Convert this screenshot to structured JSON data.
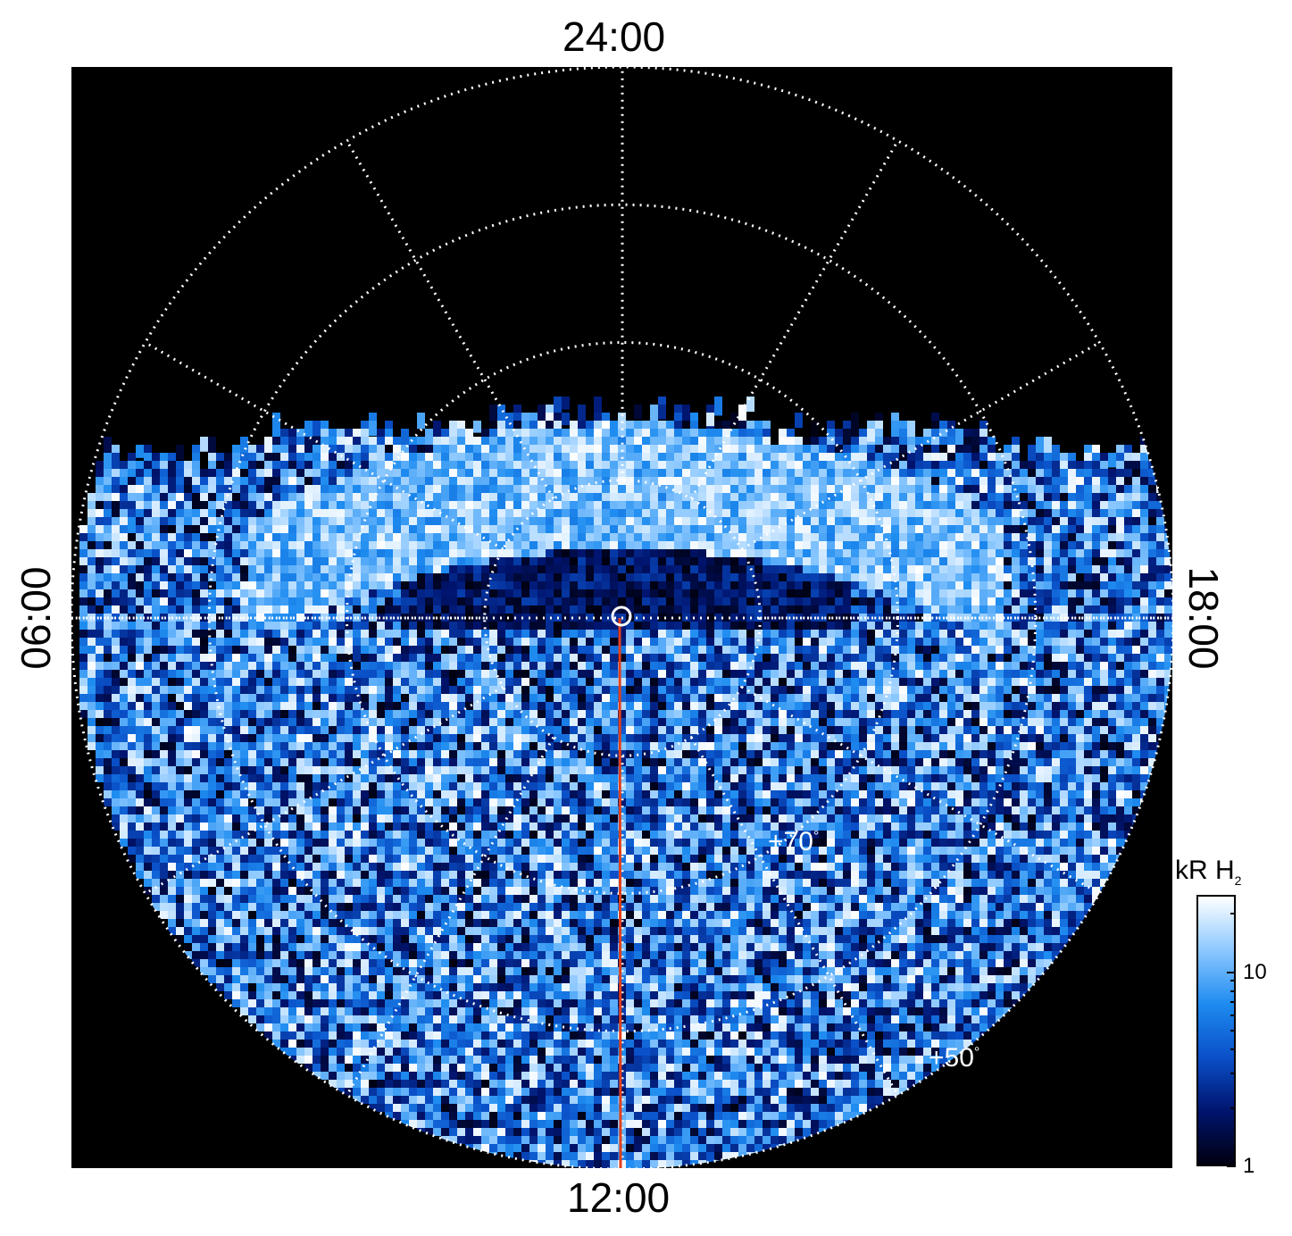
{
  "chart_data": {
    "type": "heatmap",
    "projection": "polar",
    "local_time_labels": {
      "top": "24:00",
      "bottom": "12:00",
      "left": "06:00",
      "right": "18:00"
    },
    "latitude_labels": [
      {
        "value": 70,
        "text": "+70"
      },
      {
        "value": 50,
        "text": "+50"
      }
    ],
    "degree_symbol": "°",
    "colorbar": {
      "title": "kR H",
      "title_subscript": "2",
      "scale": "log",
      "range": [
        1,
        25
      ],
      "ticks": [
        {
          "value": 1,
          "label": "1"
        },
        {
          "value": 10,
          "label": "10"
        }
      ],
      "colormap": [
        "#000010",
        "#00146e",
        "#0a50c8",
        "#1e8cf0",
        "#8cc8ff",
        "#ffffff"
      ]
    },
    "background_color": "#000000",
    "grid_color": "#ffffff",
    "grid_style": "dotted",
    "meridian_line_color": "#e0401c",
    "pole_marker": "circle",
    "grid_latitude_circles_count": 4,
    "grid_local_time_spacing_hours": 2,
    "data_coverage": "dayside and flanks (night side mostly empty)"
  }
}
